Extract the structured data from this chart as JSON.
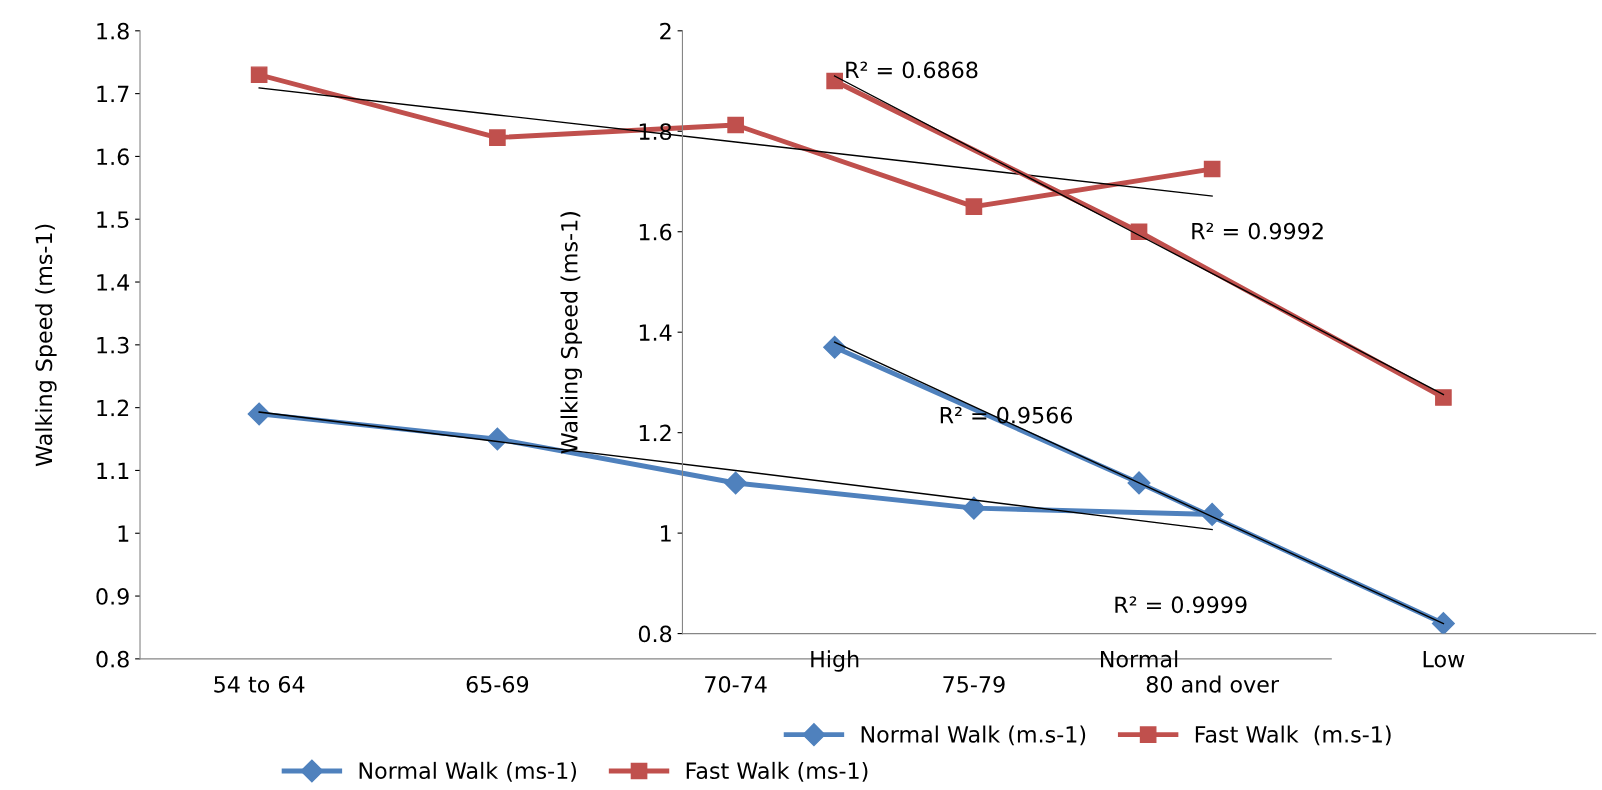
{
  "chart_data": [
    {
      "type": "line",
      "categories": [
        "54 to 64",
        "65-69",
        "70-74",
        "75-79",
        "80 and over"
      ],
      "ylabel": "Walking Speed (ms-1)",
      "ylim": [
        0.8,
        1.8
      ],
      "yticks": [
        0.8,
        0.9,
        1,
        1.1,
        1.2,
        1.3,
        1.4,
        1.5,
        1.6,
        1.7,
        1.8
      ],
      "grid": false,
      "legend": "bottom",
      "annotations": [
        "R² = 0.6868",
        "R² = 0.9566"
      ],
      "series": [
        {
          "name": "Normal Walk (ms-1)",
          "color": "#4f81bd",
          "marker": "diamond",
          "values": [
            1.19,
            1.15,
            1.08,
            1.04,
            1.03
          ]
        },
        {
          "name": "Fast Walk (ms-1)",
          "color": "#c0504d",
          "marker": "square",
          "values": [
            1.73,
            1.63,
            1.65,
            1.52,
            1.58
          ]
        },
        {
          "color": "#000000",
          "marker": "none",
          "values": [
            1.709,
            1.666,
            1.623,
            1.58,
            1.537
          ]
        },
        {
          "color": "#000000",
          "marker": "none",
          "values": [
            1.193,
            1.146,
            1.1,
            1.053,
            1.006
          ]
        }
      ]
    },
    {
      "type": "line",
      "categories": [
        "High",
        "Normal",
        "Low"
      ],
      "ylabel": "Walking Speed (ms-1)",
      "ylim": [
        0.8,
        2
      ],
      "yticks": [
        0.8,
        1,
        1.2,
        1.4,
        1.6,
        1.8,
        2
      ],
      "grid": false,
      "legend": "bottom",
      "annotations": [
        "R² = 0.9992",
        "R² = 0.9999"
      ],
      "series": [
        {
          "name": "Normal Walk (m.s-1)",
          "color": "#4f81bd",
          "marker": "diamond",
          "values": [
            1.37,
            1.1,
            0.82
          ]
        },
        {
          "name": "Fast Walk  (m.s-1)",
          "color": "#c0504d",
          "marker": "square",
          "values": [
            1.9,
            1.6,
            1.27
          ]
        },
        {
          "color": "#000000",
          "marker": "none",
          "values": [
            1.91,
            1.593,
            1.276
          ]
        },
        {
          "color": "#000000",
          "marker": "none",
          "values": [
            1.38,
            1.1,
            0.82
          ]
        }
      ]
    }
  ]
}
